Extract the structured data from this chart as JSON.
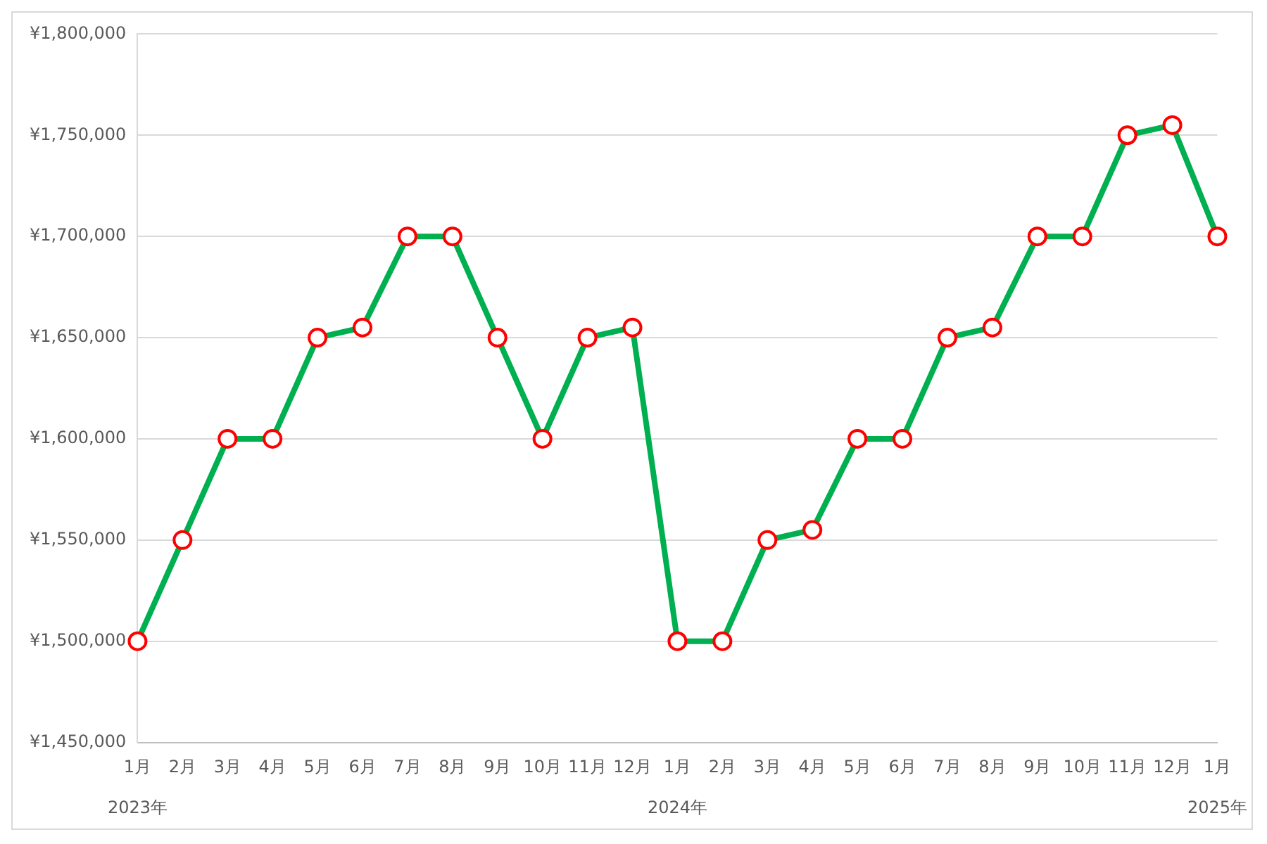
{
  "chart_data": {
    "type": "line",
    "categories": [
      "1月",
      "2月",
      "3月",
      "4月",
      "5月",
      "6月",
      "7月",
      "8月",
      "9月",
      "10月",
      "11月",
      "12月",
      "1月",
      "2月",
      "3月",
      "4月",
      "5月",
      "6月",
      "7月",
      "8月",
      "9月",
      "10月",
      "11月",
      "12月",
      "1月"
    ],
    "annotations": [
      "2023年",
      "2024年",
      "2025年"
    ],
    "series": [
      {
        "color": "#00b050",
        "values": [
          1500000,
          1550000,
          1600000,
          1600000,
          1650000,
          1655000,
          1700000,
          1700000,
          1650000,
          1600000,
          1650000,
          1655000,
          1500000,
          1500000,
          1550000,
          1555000,
          1600000,
          1600000,
          1650000,
          1655000,
          1700000,
          1700000,
          1750000,
          1755000,
          1700000
        ]
      }
    ],
    "ylim": [
      1450000,
      1800000
    ],
    "yticks": [
      {
        "value": 1450000,
        "label": "¥1,450,000"
      },
      {
        "value": 1500000,
        "label": "¥1,500,000"
      },
      {
        "value": 1550000,
        "label": "¥1,550,000"
      },
      {
        "value": 1600000,
        "label": "¥1,600,000"
      },
      {
        "value": 1650000,
        "label": "¥1,650,000"
      },
      {
        "value": 1700000,
        "label": "¥1,700,000"
      },
      {
        "value": 1750000,
        "label": "¥1,750,000"
      },
      {
        "value": 1800000,
        "label": "¥1,800,000"
      }
    ],
    "grid": "y",
    "marker": "circle",
    "line_style": "solid",
    "legend": false
  }
}
